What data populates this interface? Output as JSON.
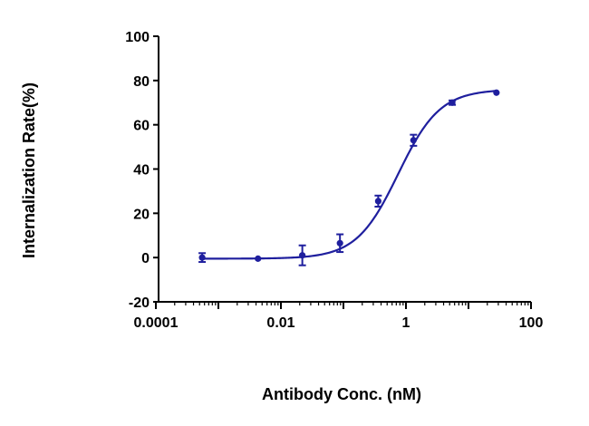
{
  "chart_data": {
    "type": "line",
    "title": "",
    "xlabel": "Antibody Conc. (nM)",
    "ylabel": "Internalization Rate(%)",
    "xscale": "log",
    "xlim": [
      0.0001,
      100
    ],
    "ylim": [
      -20,
      100
    ],
    "x_tick_labels": [
      "0.0001",
      "0.01",
      "1",
      "100"
    ],
    "y_tick_labels": [
      "-20",
      "0",
      "20",
      "40",
      "60",
      "80",
      "100"
    ],
    "grid": false,
    "legend": "none",
    "series": [
      {
        "color": "#1f1f9e",
        "marker": "circle",
        "fit": "sigmoidal dose-response",
        "points": [
          {
            "x": 0.00055,
            "y": 0.0,
            "err": 2.0
          },
          {
            "x": 0.0043,
            "y": -0.5,
            "err": 0.5
          },
          {
            "x": 0.022,
            "y": 1.0,
            "err": 4.5
          },
          {
            "x": 0.088,
            "y": 6.5,
            "err": 4.0
          },
          {
            "x": 0.36,
            "y": 25.5,
            "err": 2.5
          },
          {
            "x": 1.32,
            "y": 53.0,
            "err": 2.5
          },
          {
            "x": 5.5,
            "y": 70.0,
            "err": 1.0
          },
          {
            "x": 28.0,
            "y": 74.5,
            "err": 0.5
          }
        ]
      }
    ]
  }
}
